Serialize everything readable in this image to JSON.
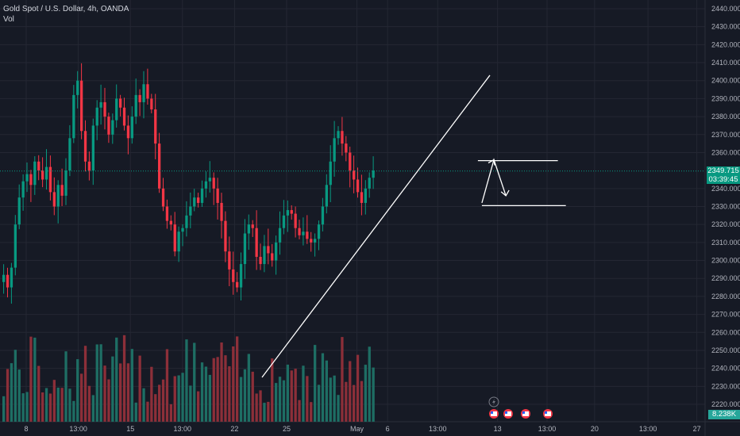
{
  "legend": {
    "symbol_line": "Gold Spot / U.S. Dollar, 4h, OANDA",
    "vol_label": "Vol"
  },
  "colors": {
    "background": "#161a25",
    "grid": "#242733",
    "up": "#089981",
    "down": "#f23645",
    "vol_up": "#1e6e64",
    "vol_down": "#8c2f39",
    "drawing": "#ffffff",
    "price_line": "#089981"
  },
  "price_tag": {
    "price": "2349.715",
    "countdown": "03:39:45"
  },
  "volume_tag": {
    "value": "8.238K"
  },
  "chart_data": {
    "type": "candlestick",
    "y_axis": {
      "min": 2220,
      "max": 2440,
      "ticks": [
        2440,
        2430,
        2420,
        2410,
        2400,
        2390,
        2380,
        2370,
        2360,
        2340,
        2330,
        2320,
        2310,
        2300,
        2290,
        2280,
        2270,
        2260,
        2250,
        2240,
        2230,
        2220
      ],
      "tick_labels": [
        "2440.000",
        "2430.000",
        "2420.000",
        "2410.000",
        "2400.000",
        "2390.000",
        "2380.000",
        "2370.000",
        "2360.000",
        "2340.000",
        "2330.000",
        "2320.000",
        "2310.000",
        "2300.000",
        "2290.000",
        "2280.000",
        "2270.000",
        "2260.000",
        "2250.000",
        "2240.000",
        "2230.000",
        "2220.000"
      ]
    },
    "x_axis": {
      "tick_labels": [
        "8",
        "13:00",
        "15",
        "13:00",
        "22",
        "25",
        "May",
        "6",
        "13:00",
        "13",
        "13:00",
        "20",
        "13:00",
        "27",
        "13:00"
      ],
      "tick_positions": [
        0,
        0.08,
        0.16,
        0.24,
        0.32,
        0.4,
        0.508,
        0.555,
        0.632,
        0.724,
        0.8,
        0.873,
        0.955,
        1.03,
        1.11
      ]
    },
    "current_price": 2349.715,
    "closes": [
      2292,
      2285,
      2296,
      2320,
      2335,
      2344,
      2348,
      2342,
      2355,
      2350,
      2345,
      2352,
      2338,
      2330,
      2342,
      2336,
      2350,
      2368,
      2392,
      2400,
      2372,
      2355,
      2350,
      2375,
      2385,
      2388,
      2380,
      2370,
      2378,
      2390,
      2385,
      2375,
      2368,
      2380,
      2392,
      2388,
      2398,
      2390,
      2384,
      2365,
      2340,
      2330,
      2322,
      2320,
      2305,
      2316,
      2318,
      2325,
      2330,
      2335,
      2332,
      2340,
      2344,
      2346,
      2340,
      2332,
      2322,
      2305,
      2295,
      2288,
      2285,
      2298,
      2315,
      2320,
      2318,
      2302,
      2298,
      2308,
      2304,
      2300,
      2310,
      2318,
      2325,
      2328,
      2326,
      2318,
      2314,
      2316,
      2312,
      2310,
      2312,
      2320,
      2330,
      2342,
      2355,
      2368,
      2372,
      2365,
      2360,
      2350,
      2345,
      2338,
      2332,
      2340,
      2346,
      2350
    ],
    "volume_scale_max": 30,
    "drawings": [
      {
        "type": "trendline",
        "from": {
          "bar": 42,
          "price": 2235
        },
        "to": {
          "bar": 99,
          "price": 2403
        }
      },
      {
        "type": "horizontal_segment",
        "from_bar": 96,
        "to_bar": 116,
        "price": 2355.5
      },
      {
        "type": "horizontal_segment",
        "from_bar": 97,
        "to_bar": 118,
        "price": 2330.5
      },
      {
        "type": "arrow_path",
        "points": [
          {
            "bar": 97,
            "price": 2332
          },
          {
            "bar": 100,
            "price": 2356
          },
          {
            "bar": 103,
            "price": 2336
          }
        ]
      }
    ]
  },
  "event_badges": [
    "us-flag-icon",
    "us-flag-icon",
    "us-flag-icon",
    "us-flag-icon"
  ]
}
